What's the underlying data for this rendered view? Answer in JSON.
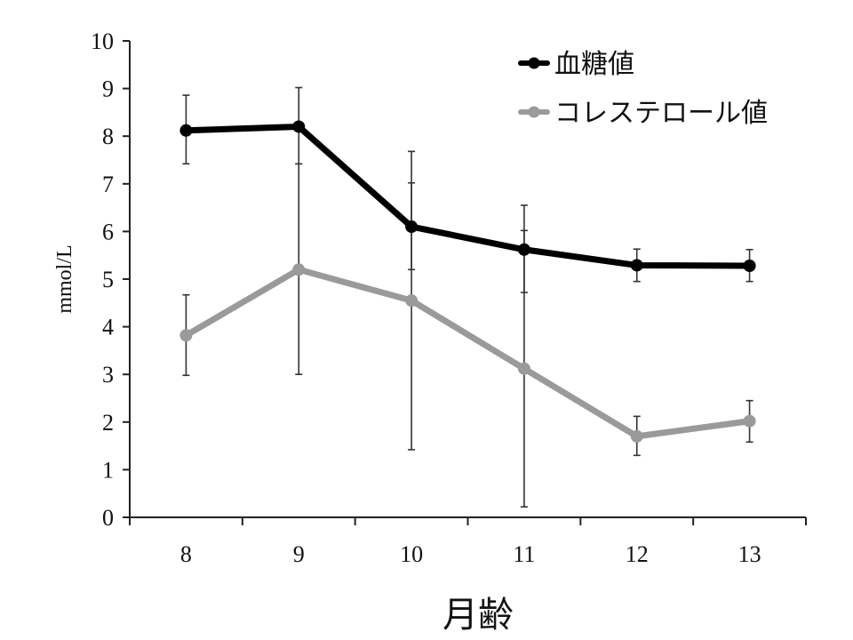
{
  "chart_data": {
    "type": "line",
    "title": "",
    "xlabel": "月齢",
    "ylabel": "mmol/L",
    "x": [
      8,
      9,
      10,
      11,
      12,
      13
    ],
    "x_tick_labels": [
      "8",
      "9",
      "10",
      "11",
      "12",
      "13"
    ],
    "ylim": [
      0,
      10
    ],
    "y_ticks": [
      0,
      1,
      2,
      3,
      4,
      5,
      6,
      7,
      8,
      9,
      10
    ],
    "y_tick_labels": [
      "0",
      "1",
      "2",
      "3",
      "4",
      "5",
      "6",
      "7",
      "8",
      "9",
      "10"
    ],
    "grid": false,
    "legend_position": "top-right",
    "series": [
      {
        "name": "血糖値",
        "color": "#000000",
        "values": [
          8.12,
          8.2,
          6.1,
          5.62,
          5.29,
          5.28
        ],
        "error_low": [
          7.42,
          7.42,
          5.2,
          4.72,
          4.95,
          4.95
        ],
        "error_high": [
          8.86,
          9.02,
          7.02,
          6.55,
          5.63,
          5.62
        ]
      },
      {
        "name": "コレステロール値",
        "color": "#9a9a9a",
        "values": [
          3.82,
          5.2,
          4.55,
          3.12,
          1.7,
          2.02
        ],
        "error_low": [
          2.98,
          3.0,
          1.42,
          0.22,
          1.3,
          1.58
        ],
        "error_high": [
          4.67,
          7.42,
          7.68,
          6.02,
          2.12,
          2.45
        ]
      }
    ]
  }
}
